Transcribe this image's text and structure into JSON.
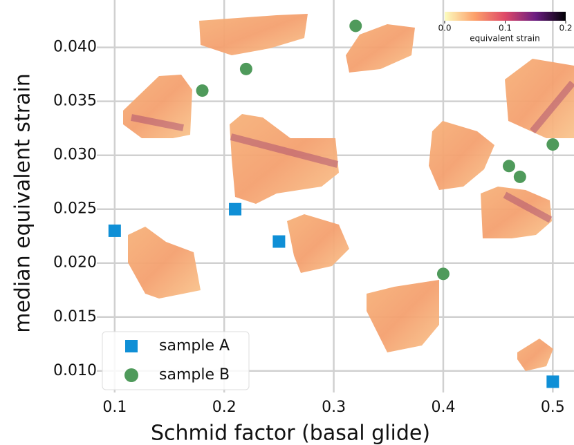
{
  "chart_data": {
    "type": "scatter",
    "x_label": "Schmid factor (basal glide)",
    "y_label": "median equivalent strain",
    "xlim": [
      0.09,
      0.52
    ],
    "ylim": [
      0.008,
      0.0444
    ],
    "xticks": [
      0.1,
      0.2,
      0.3,
      0.4,
      0.5
    ],
    "yticks": [
      {
        "value": 0.01,
        "label": "0.010"
      },
      {
        "value": 0.015,
        "label": "0.015"
      },
      {
        "value": 0.02,
        "label": "0.020"
      },
      {
        "value": 0.025,
        "label": "0.025"
      },
      {
        "value": 0.03,
        "label": "0.030"
      },
      {
        "value": 0.035,
        "label": "0.035"
      },
      {
        "value": 0.04,
        "label": "0.040"
      }
    ],
    "grid": true,
    "legend_position": "lower-left",
    "series": [
      {
        "name": "sample A",
        "color": "#0f8fd6",
        "marker": "square",
        "x": [
          0.1,
          0.21,
          0.25,
          0.5
        ],
        "values": [
          0.023,
          0.025,
          0.022,
          0.009
        ]
      },
      {
        "name": "sample B",
        "color": "#4f9a5b",
        "marker": "circle",
        "x": [
          0.18,
          0.22,
          0.32,
          0.4,
          0.46,
          0.47,
          0.5
        ],
        "values": [
          0.036,
          0.038,
          0.042,
          0.019,
          0.029,
          0.028,
          0.031
        ]
      }
    ],
    "colorbar": {
      "label": "equivalent strain",
      "lim": [
        0,
        0.2
      ],
      "ticks": [
        {
          "value": 0,
          "label": "0.0"
        },
        0.1,
        0.2
      ]
    }
  }
}
